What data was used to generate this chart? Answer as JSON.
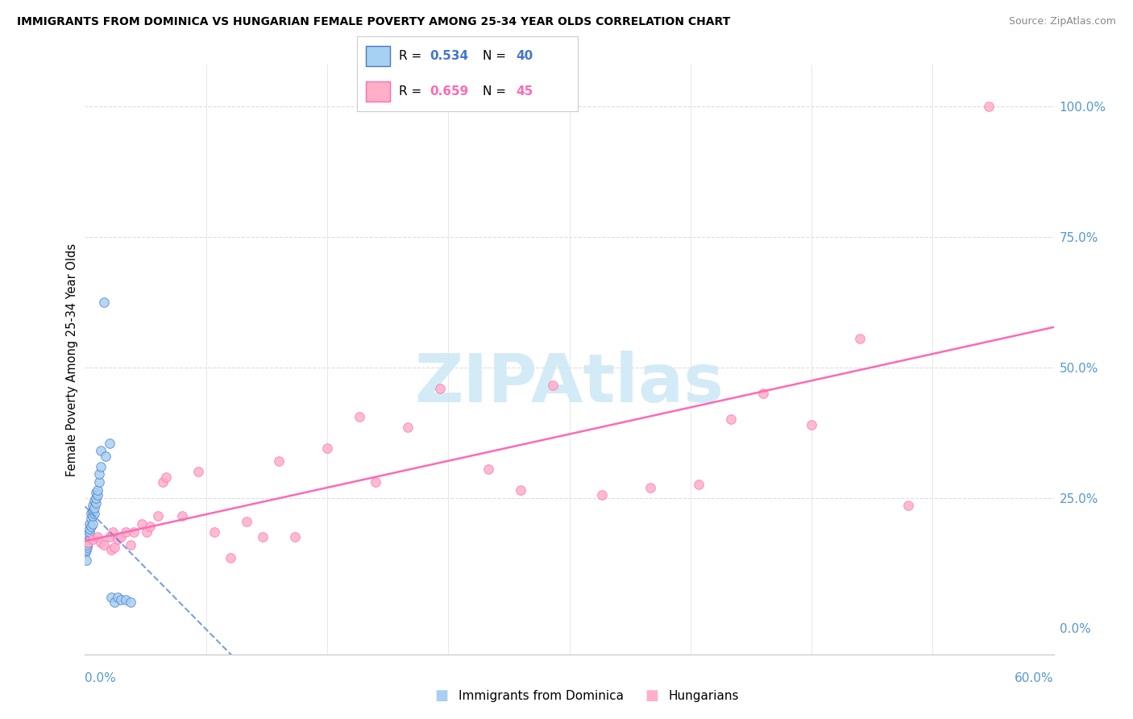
{
  "title": "IMMIGRANTS FROM DOMINICA VS HUNGARIAN FEMALE POVERTY AMONG 25-34 YEAR OLDS CORRELATION CHART",
  "source": "Source: ZipAtlas.com",
  "ylabel": "Female Poverty Among 25-34 Year Olds",
  "xlim": [
    0.0,
    0.6
  ],
  "ylim": [
    -0.05,
    1.08
  ],
  "R1": 0.534,
  "N1": 40,
  "R2": 0.659,
  "N2": 45,
  "color1": "#a8d0f0",
  "color2": "#ffb0c8",
  "line_color1": "#4477cc",
  "line_color2": "#ff69b4",
  "axis_color": "#5599cc",
  "grid_color": "#dddddd",
  "dominica_x": [
    0.0005,
    0.001,
    0.001,
    0.0015,
    0.0015,
    0.002,
    0.002,
    0.002,
    0.003,
    0.003,
    0.003,
    0.003,
    0.004,
    0.004,
    0.004,
    0.005,
    0.005,
    0.005,
    0.005,
    0.006,
    0.006,
    0.006,
    0.007,
    0.007,
    0.007,
    0.008,
    0.008,
    0.009,
    0.009,
    0.01,
    0.01,
    0.012,
    0.013,
    0.015,
    0.016,
    0.018,
    0.02,
    0.022,
    0.025,
    0.028
  ],
  "dominica_y": [
    0.145,
    0.13,
    0.15,
    0.155,
    0.16,
    0.165,
    0.175,
    0.18,
    0.17,
    0.185,
    0.19,
    0.2,
    0.195,
    0.21,
    0.22,
    0.2,
    0.215,
    0.225,
    0.235,
    0.22,
    0.23,
    0.245,
    0.24,
    0.25,
    0.26,
    0.255,
    0.265,
    0.28,
    0.295,
    0.31,
    0.34,
    0.625,
    0.33,
    0.355,
    0.06,
    0.05,
    0.06,
    0.055,
    0.055,
    0.05
  ],
  "hungarian_x": [
    0.002,
    0.005,
    0.008,
    0.01,
    0.012,
    0.015,
    0.016,
    0.017,
    0.018,
    0.02,
    0.022,
    0.025,
    0.028,
    0.03,
    0.035,
    0.038,
    0.04,
    0.045,
    0.048,
    0.05,
    0.06,
    0.07,
    0.08,
    0.09,
    0.1,
    0.11,
    0.12,
    0.13,
    0.15,
    0.17,
    0.18,
    0.2,
    0.22,
    0.25,
    0.27,
    0.29,
    0.32,
    0.35,
    0.38,
    0.4,
    0.42,
    0.45,
    0.48,
    0.51,
    0.56
  ],
  "hungarian_y": [
    0.165,
    0.17,
    0.175,
    0.165,
    0.16,
    0.175,
    0.15,
    0.185,
    0.155,
    0.17,
    0.175,
    0.185,
    0.16,
    0.185,
    0.2,
    0.185,
    0.195,
    0.215,
    0.28,
    0.29,
    0.215,
    0.3,
    0.185,
    0.135,
    0.205,
    0.175,
    0.32,
    0.175,
    0.345,
    0.405,
    0.28,
    0.385,
    0.46,
    0.305,
    0.265,
    0.465,
    0.255,
    0.27,
    0.275,
    0.4,
    0.45,
    0.39,
    0.555,
    0.235,
    1.0
  ],
  "watermark": "ZIPAtlas",
  "watermark_color": "#cce8f5",
  "background_color": "#ffffff",
  "legend1_label": "Immigrants from Dominica",
  "legend2_label": "Hungarians"
}
